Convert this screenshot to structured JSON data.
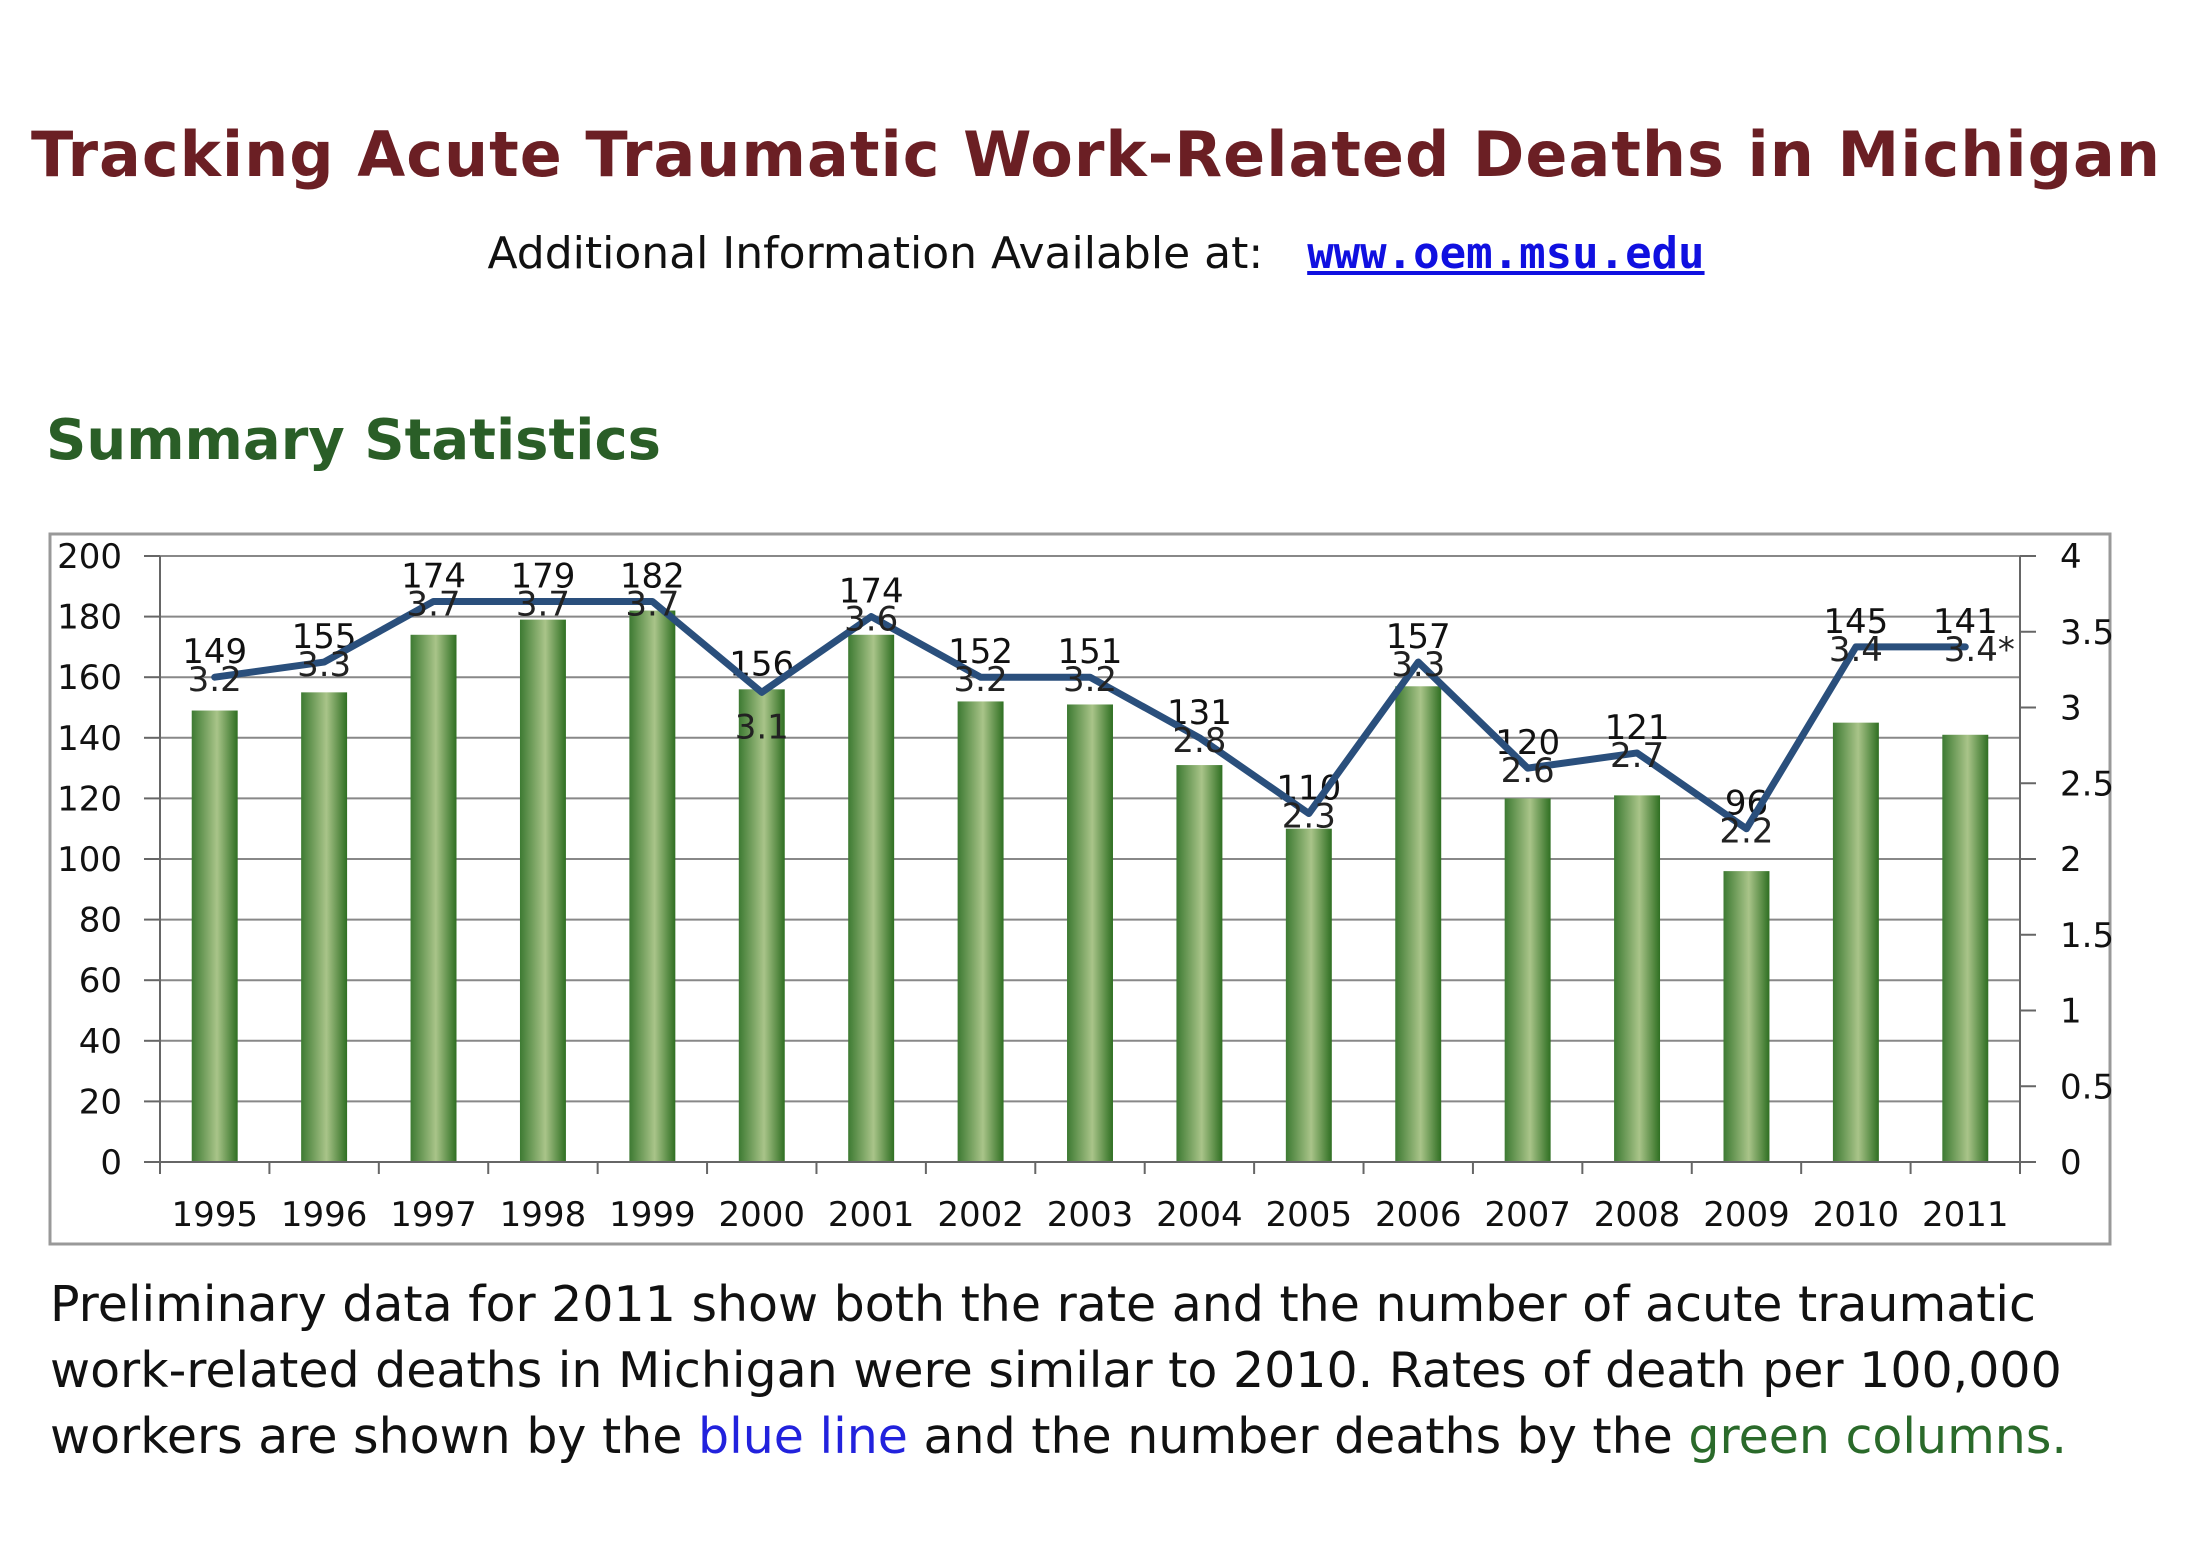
{
  "header": {
    "title": "Tracking Acute Traumatic Work-Related Deaths in Michigan",
    "info_label": "Additional Information Available at:",
    "info_link": "www.oem.msu.edu"
  },
  "section_title": "Summary Statistics",
  "caption": {
    "part1": "Preliminary data for 2011 show both the rate and the number of acute traumatic work-related deaths in Michigan were similar to 2010. Rates of death per 100,000 workers are shown by the ",
    "blue_text": "blue line",
    "part2": " and the number deaths by the ",
    "green_text": "green columns."
  },
  "colors": {
    "bar": "#6e9a52",
    "line": "#2a4f7c",
    "title": "#6b1f24",
    "section": "#2a5e27"
  },
  "chart_data": {
    "type": "bar",
    "categories": [
      "1995",
      "1996",
      "1997",
      "1998",
      "1999",
      "2000",
      "2001",
      "2002",
      "2003",
      "2004",
      "2005",
      "2006",
      "2007",
      "2008",
      "2009",
      "2010",
      "2011"
    ],
    "series": [
      {
        "type": "bar",
        "axis": "left",
        "values": [
          149,
          155,
          174,
          179,
          182,
          156,
          174,
          152,
          151,
          131,
          110,
          157,
          120,
          121,
          96,
          145,
          141
        ]
      },
      {
        "type": "line",
        "axis": "right",
        "values": [
          3.2,
          3.3,
          3.7,
          3.7,
          3.7,
          3.1,
          3.6,
          3.2,
          3.2,
          2.8,
          2.3,
          3.3,
          2.6,
          2.7,
          2.2,
          3.4,
          3.4
        ],
        "labels": [
          "3.2",
          "3.3",
          "3.7",
          "3.7",
          "3.7",
          "3.1",
          "3.6",
          "3.2",
          "3.2",
          "2.8",
          "2.3",
          "3.3",
          "2.6",
          "2.7",
          "2.2",
          "3.4",
          "3.4*"
        ]
      }
    ],
    "ylim_left": [
      0,
      200
    ],
    "yticks_left": [
      "0",
      "20",
      "40",
      "60",
      "80",
      "100",
      "120",
      "140",
      "160",
      "180",
      "200"
    ],
    "ylim_right": [
      0,
      4
    ],
    "yticks_right": [
      "0",
      "0.5",
      "1",
      "1.5",
      "2",
      "2.5",
      "3",
      "3.5",
      "4"
    ],
    "grid": true
  }
}
